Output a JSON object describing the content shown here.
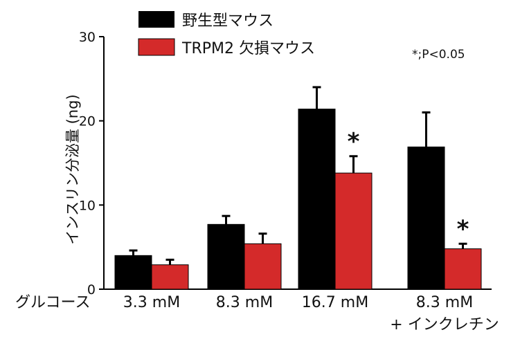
{
  "chart_data": {
    "type": "bar",
    "title": "",
    "ylabel": "インスリン分泌量 (ng)",
    "xaxis_prefix": "グルコース",
    "ylim": [
      0,
      30
    ],
    "yticks": [
      0,
      10,
      20,
      30
    ],
    "categories": [
      "3.3 mM",
      "8.3 mM",
      "16.7 mM",
      "8.3 mM"
    ],
    "category_sublabels": [
      "",
      "",
      "",
      "+ インクレチン"
    ],
    "series": [
      {
        "name": "野生型マウス",
        "color": "#000000",
        "values": [
          4.0,
          7.7,
          21.4,
          16.9
        ],
        "errors": [
          0.6,
          1.0,
          2.6,
          4.1
        ]
      },
      {
        "name": "TRPM2 欠損マウス",
        "color": "#d42a2a",
        "values": [
          2.9,
          5.4,
          13.8,
          4.8
        ],
        "errors": [
          0.6,
          1.2,
          2.0,
          0.6
        ]
      }
    ],
    "significance": [
      {
        "category_index": 2,
        "series_index": 1,
        "label": "*"
      },
      {
        "category_index": 3,
        "series_index": 1,
        "label": "*"
      }
    ],
    "annotation": "*;P<0.05",
    "grid": false,
    "legend_position": "top-left"
  }
}
